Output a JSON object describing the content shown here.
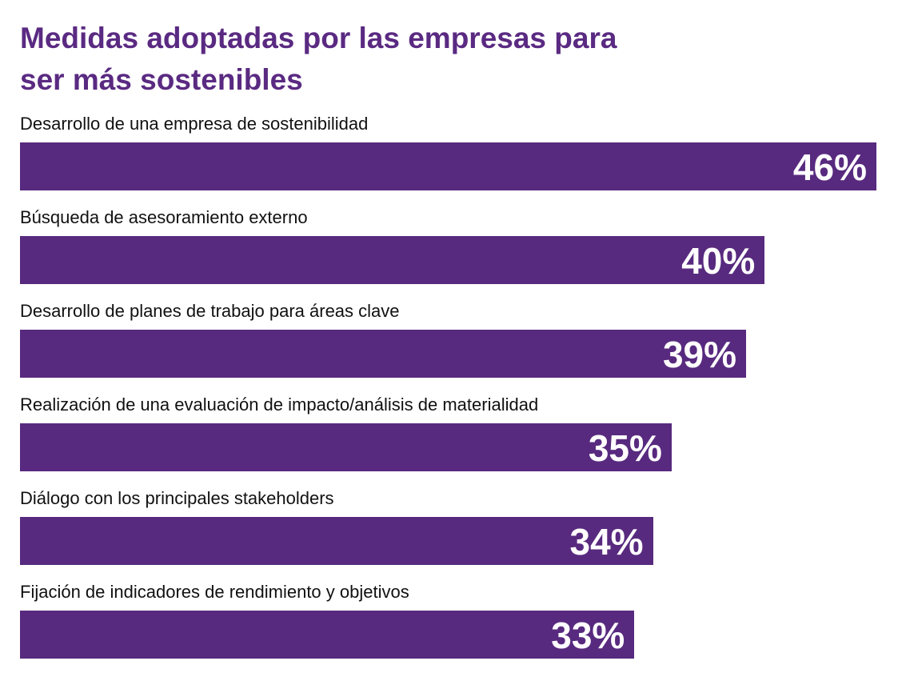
{
  "chart_data": {
    "type": "bar",
    "orientation": "horizontal",
    "title": "Medidas adoptadas por las empresas para ser más sostenibles",
    "categories": [
      "Desarrollo de una empresa de sostenibilidad",
      "Búsqueda de asesoramiento externo",
      "Desarrollo de planes de trabajo para áreas clave",
      "Realización de una evaluación de impacto/análisis de materialidad",
      "Diálogo con los principales stakeholders",
      "Fijación de indicadores de rendimiento y objetivos"
    ],
    "values": [
      46,
      40,
      39,
      35,
      34,
      33
    ],
    "value_labels": [
      "46%",
      "40%",
      "39%",
      "35%",
      "34%",
      "33%"
    ],
    "color": "#582a7f"
  }
}
